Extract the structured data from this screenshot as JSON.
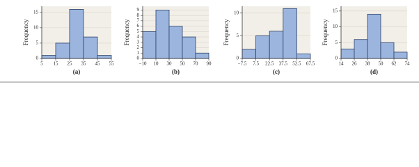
{
  "chart_data": [
    {
      "type": "histogram",
      "caption": "(a)",
      "ylabel": "Frequency",
      "bins": [
        5,
        15,
        25,
        35,
        45,
        55
      ],
      "values": [
        1,
        5,
        16,
        7,
        1
      ],
      "color": "#9bb5de",
      "xlim": [
        5,
        55
      ],
      "xticks": [
        5,
        15,
        25,
        35,
        45,
        55
      ],
      "ylim": [
        0,
        17
      ],
      "yticks": [
        0,
        5,
        10,
        15
      ],
      "grid": true
    },
    {
      "type": "histogram",
      "caption": "(b)",
      "ylabel": "Frequency",
      "bins": [
        -10,
        10,
        30,
        50,
        70,
        90
      ],
      "values": [
        5,
        9,
        6,
        4,
        1
      ],
      "color": "#9bb5de",
      "xlim": [
        -10,
        90
      ],
      "xticks": [
        {
          "value": -10,
          "label": "−10"
        },
        10,
        30,
        50,
        70,
        90
      ],
      "ylim": [
        0,
        9.7
      ],
      "yticks": [
        0,
        1,
        2,
        3,
        4,
        5,
        6,
        7,
        8,
        9
      ],
      "grid": true
    },
    {
      "type": "histogram",
      "caption": "(c)",
      "ylabel": "Frequency",
      "bins": [
        -7.5,
        7.5,
        22.5,
        37.5,
        52.5,
        67.5
      ],
      "values": [
        2,
        5,
        6,
        11,
        1
      ],
      "color": "#9bb5de",
      "xlim": [
        -7.5,
        67.5
      ],
      "xticks": [
        {
          "value": -7.5,
          "label": "−7.5"
        },
        7.5,
        22.5,
        37.5,
        52.5,
        67.5
      ],
      "ylim": [
        0,
        11.5
      ],
      "yticks": [
        0,
        5,
        10
      ],
      "grid": true
    },
    {
      "type": "histogram",
      "caption": "(d)",
      "ylabel": "Frequency",
      "bins": [
        14,
        26,
        38,
        50,
        62,
        74
      ],
      "values": [
        3,
        6,
        14,
        5,
        2
      ],
      "color": "#9bb5de",
      "xlim": [
        14,
        74
      ],
      "xticks": [
        14,
        26,
        38,
        50,
        62,
        74
      ],
      "ylim": [
        0,
        16.5
      ],
      "yticks": [
        0,
        5,
        10,
        15
      ],
      "grid": true
    }
  ]
}
